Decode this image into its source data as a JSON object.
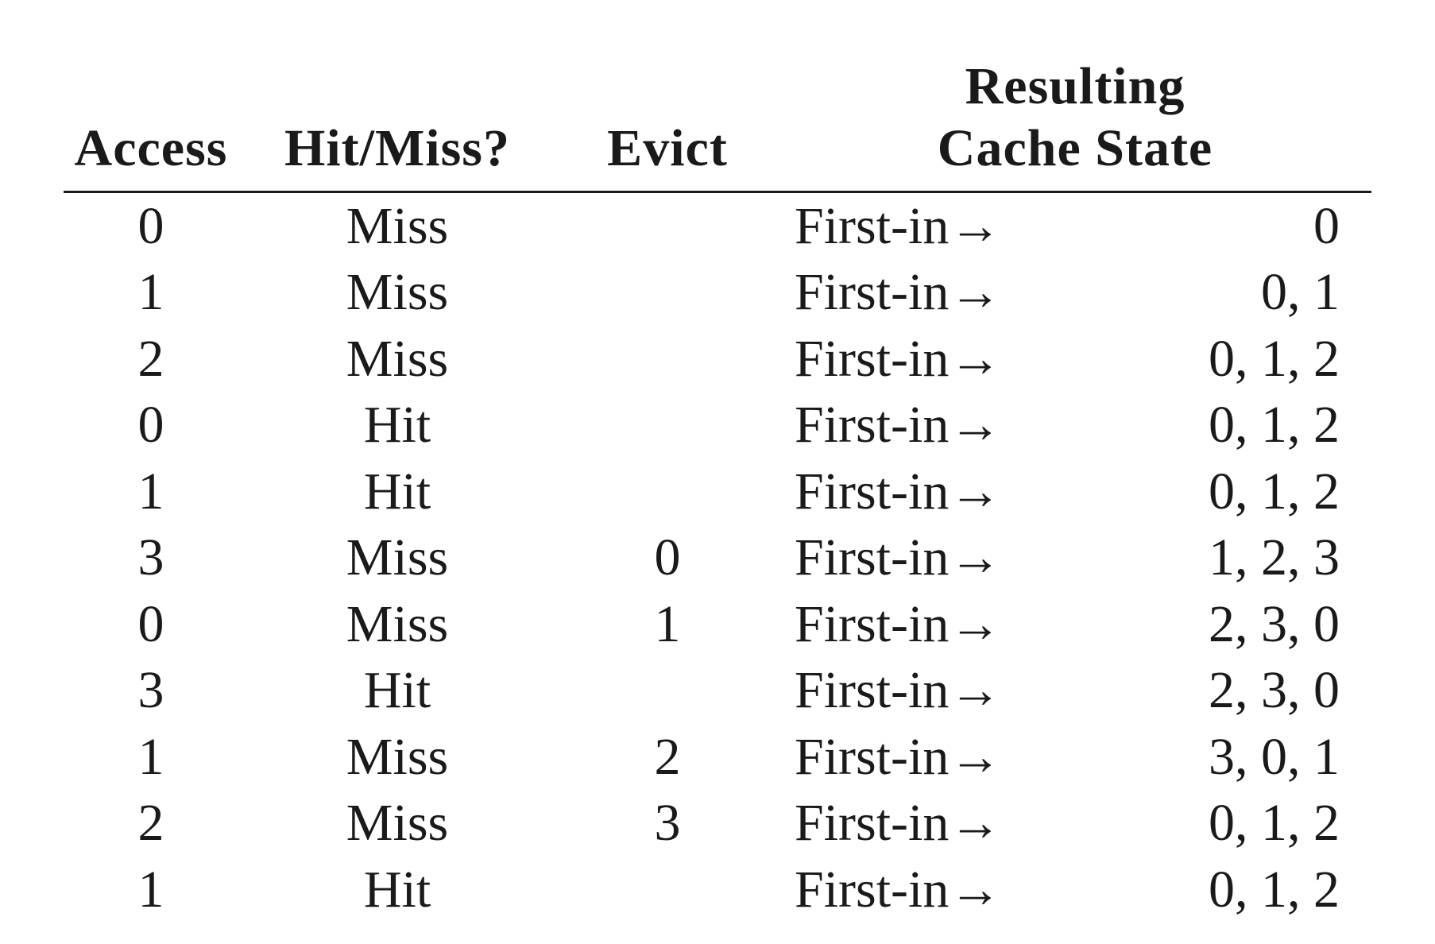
{
  "table": {
    "headers": {
      "access": "Access",
      "hit_miss": "Hit/Miss?",
      "evict": "Evict",
      "state_line1": "Resulting",
      "state_line2": "Cache State"
    },
    "rows": [
      {
        "access": "0",
        "hit_miss": "Miss",
        "evict": "",
        "first_in": "First-in→",
        "state": "0"
      },
      {
        "access": "1",
        "hit_miss": "Miss",
        "evict": "",
        "first_in": "First-in→",
        "state": "0, 1"
      },
      {
        "access": "2",
        "hit_miss": "Miss",
        "evict": "",
        "first_in": "First-in→",
        "state": "0, 1, 2"
      },
      {
        "access": "0",
        "hit_miss": "Hit",
        "evict": "",
        "first_in": "First-in→",
        "state": "0, 1, 2"
      },
      {
        "access": "1",
        "hit_miss": "Hit",
        "evict": "",
        "first_in": "First-in→",
        "state": "0, 1, 2"
      },
      {
        "access": "3",
        "hit_miss": "Miss",
        "evict": "0",
        "first_in": "First-in→",
        "state": "1, 2, 3"
      },
      {
        "access": "0",
        "hit_miss": "Miss",
        "evict": "1",
        "first_in": "First-in→",
        "state": "2, 3, 0"
      },
      {
        "access": "3",
        "hit_miss": "Hit",
        "evict": "",
        "first_in": "First-in→",
        "state": "2, 3, 0"
      },
      {
        "access": "1",
        "hit_miss": "Miss",
        "evict": "2",
        "first_in": "First-in→",
        "state": "3, 0, 1"
      },
      {
        "access": "2",
        "hit_miss": "Miss",
        "evict": "3",
        "first_in": "First-in→",
        "state": "0, 1, 2"
      },
      {
        "access": "1",
        "hit_miss": "Hit",
        "evict": "",
        "first_in": "First-in→",
        "state": "0, 1, 2"
      }
    ]
  }
}
